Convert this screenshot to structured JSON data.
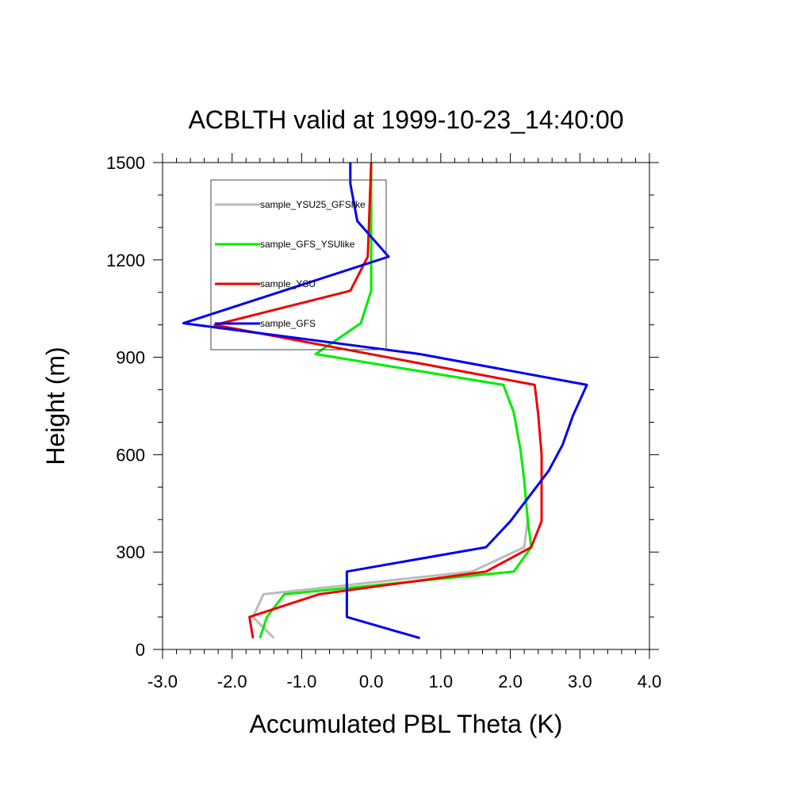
{
  "chart_data": {
    "type": "line",
    "title": "ACBLTH valid at 1999-10-23_14:40:00",
    "xlabel": "Accumulated PBL Theta (K)",
    "ylabel": "Height (m)",
    "xlim": [
      -3.0,
      4.0
    ],
    "ylim": [
      0,
      1500
    ],
    "xticks": [
      "-3.0",
      "-2.0",
      "-1.0",
      "0.0",
      "1.0",
      "2.0",
      "3.0",
      "4.0"
    ],
    "yticks": [
      "0",
      "300",
      "600",
      "900",
      "1200",
      "1500"
    ],
    "legend_position": "top-left",
    "grid": false,
    "series": [
      {
        "name": "sample_YSU25_GFSlike",
        "color": "#bbbbbb",
        "points": [
          [
            -1.4,
            35
          ],
          [
            -1.7,
            100
          ],
          [
            -1.55,
            170
          ],
          [
            1.45,
            240
          ],
          [
            2.2,
            315
          ],
          [
            2.25,
            400
          ],
          [
            2.2,
            520
          ],
          [
            2.15,
            610
          ],
          [
            2.05,
            730
          ],
          [
            1.9,
            815
          ],
          [
            -0.8,
            910
          ],
          [
            -0.15,
            1005
          ],
          [
            0.0,
            1105
          ],
          [
            0.0,
            1210
          ],
          [
            0.0,
            1500
          ]
        ]
      },
      {
        "name": "sample_GFS_YSUlike",
        "color": "#00ee00",
        "points": [
          [
            -1.6,
            35
          ],
          [
            -1.5,
            100
          ],
          [
            -1.25,
            170
          ],
          [
            2.05,
            240
          ],
          [
            2.3,
            315
          ],
          [
            2.25,
            400
          ],
          [
            2.2,
            520
          ],
          [
            2.15,
            610
          ],
          [
            2.05,
            730
          ],
          [
            1.9,
            815
          ],
          [
            -0.8,
            910
          ],
          [
            -0.15,
            1005
          ],
          [
            0.0,
            1105
          ],
          [
            0.0,
            1210
          ],
          [
            0.0,
            1500
          ]
        ]
      },
      {
        "name": "sample_YSU",
        "color": "#ee0000",
        "points": [
          [
            -1.7,
            35
          ],
          [
            -1.75,
            100
          ],
          [
            -0.75,
            170
          ],
          [
            1.65,
            240
          ],
          [
            2.3,
            315
          ],
          [
            2.45,
            395
          ],
          [
            2.45,
            510
          ],
          [
            2.45,
            600
          ],
          [
            2.4,
            725
          ],
          [
            2.35,
            815
          ],
          [
            -2.25,
            1000
          ],
          [
            -0.3,
            1105
          ],
          [
            -0.05,
            1210
          ],
          [
            0.0,
            1500
          ]
        ]
      },
      {
        "name": "sample_GFS",
        "color": "#0000ee",
        "points": [
          [
            0.7,
            35
          ],
          [
            -0.35,
            100
          ],
          [
            -0.35,
            240
          ],
          [
            1.65,
            315
          ],
          [
            2.0,
            395
          ],
          [
            2.55,
            550
          ],
          [
            2.75,
            630
          ],
          [
            2.9,
            720
          ],
          [
            3.1,
            815
          ],
          [
            0.7,
            910
          ],
          [
            -2.7,
            1005
          ],
          [
            0.25,
            1210
          ],
          [
            -0.2,
            1320
          ],
          [
            -0.3,
            1435
          ],
          [
            -0.3,
            1500
          ]
        ]
      }
    ]
  }
}
